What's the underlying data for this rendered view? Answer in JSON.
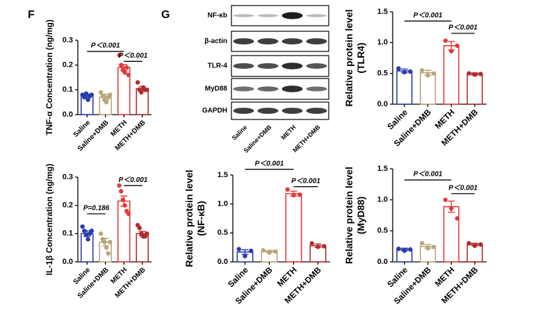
{
  "panels": [
    "F",
    "G"
  ],
  "blot": {
    "rows": [
      "NF-κb",
      "β-actin",
      "TLR-4",
      "MyD88",
      "GAPDH"
    ],
    "lanes": [
      "Saline",
      "Saline+DMB",
      "METH",
      "METH+DMB"
    ]
  },
  "chart_data": [
    {
      "type": "bar",
      "ylabel": [
        "TNF-α Concentration (ng/mg)"
      ],
      "categories": [
        "Saline",
        "Saline+DMB",
        "METH",
        "METH+DMB"
      ],
      "colors": [
        "#2a3aa8",
        "#b9a57a",
        "#e23a3a",
        "#b42a2a"
      ],
      "values": [
        0.075,
        0.07,
        0.19,
        0.105
      ],
      "errors": [
        0.008,
        0.012,
        0.012,
        0.008
      ],
      "points": [
        [
          0.08,
          0.07,
          0.085,
          0.06,
          0.075,
          0.08
        ],
        [
          0.09,
          0.075,
          0.06,
          0.05,
          0.07,
          0.08
        ],
        [
          0.24,
          0.2,
          0.18,
          0.17,
          0.19,
          0.16
        ],
        [
          0.13,
          0.1,
          0.09,
          0.11,
          0.1,
          0.1
        ]
      ],
      "ylim": [
        0,
        0.3
      ],
      "yticks": [
        {
          "value": 0,
          "label": "0.0"
        },
        0.1,
        0.2,
        0.3
      ],
      "annotations": [
        "P＜0.001",
        "P＜0.001"
      ]
    },
    {
      "type": "bar",
      "ylabel": [
        "IL-1β Concentration (ng/mg)"
      ],
      "categories": [
        "Saline",
        "Saline+DMB",
        "METH",
        "METH+DMB"
      ],
      "colors": [
        "#2a3aa8",
        "#b9a57a",
        "#e23a3a",
        "#b42a2a"
      ],
      "values": [
        0.1,
        0.07,
        0.215,
        0.1
      ],
      "errors": [
        0.01,
        0.013,
        0.018,
        0.008
      ],
      "points": [
        [
          0.125,
          0.11,
          0.095,
          0.08,
          0.1,
          0.11
        ],
        [
          0.1,
          0.08,
          0.07,
          0.05,
          0.03,
          0.07
        ],
        [
          0.27,
          0.25,
          0.22,
          0.2,
          0.18,
          0.17
        ],
        [
          0.13,
          0.12,
          0.1,
          0.09,
          0.09,
          0.1
        ]
      ],
      "ylim": [
        0,
        0.3
      ],
      "yticks": [
        {
          "value": 0,
          "label": "0.0"
        },
        0.1,
        0.2,
        0.3
      ],
      "annotations": [
        "P=0.186",
        "P＜0.001"
      ]
    },
    {
      "type": "bar",
      "ylabel": [
        "Relative protein level",
        "(TLR4)"
      ],
      "categories": [
        "Saline",
        "Saline+DMB",
        "METH",
        "METH+DMB"
      ],
      "colors": [
        "#2a3aa8",
        "#b9a57a",
        "#e23a3a",
        "#b42a2a"
      ],
      "values": [
        0.54,
        0.51,
        0.95,
        0.49
      ],
      "errors": [
        0.03,
        0.04,
        0.07,
        0.02
      ],
      "points": [
        [
          0.58,
          0.52,
          0.53
        ],
        [
          0.55,
          0.47,
          0.5
        ],
        [
          1.03,
          0.86,
          0.95
        ],
        [
          0.5,
          0.48,
          0.49
        ]
      ],
      "ylim": [
        0,
        1.5
      ],
      "yticks": [
        {
          "value": 0,
          "label": "0.0"
        },
        0.5,
        {
          "value": 1,
          "label": "1.0"
        },
        1.5
      ],
      "annotations": [
        "P＜0.001",
        "P＜0.001"
      ]
    },
    {
      "type": "bar",
      "ylabel": [
        "Relative protein level",
        "(NF-κB)"
      ],
      "categories": [
        "Saline",
        "Saline+DMB",
        "METH",
        "METH+DMB"
      ],
      "colors": [
        "#2a3aa8",
        "#b9a57a",
        "#e23a3a",
        "#b42a2a"
      ],
      "values": [
        0.17,
        0.18,
        1.18,
        0.28
      ],
      "errors": [
        0.04,
        0.02,
        0.04,
        0.03
      ],
      "points": [
        [
          0.22,
          0.1,
          0.19
        ],
        [
          0.2,
          0.16,
          0.18
        ],
        [
          1.25,
          1.15,
          1.16
        ],
        [
          0.32,
          0.26,
          0.27
        ]
      ],
      "ylim": [
        0,
        1.5
      ],
      "yticks": [
        {
          "value": 0,
          "label": "0.0"
        },
        0.5,
        {
          "value": 1,
          "label": "1.0"
        },
        1.5
      ],
      "annotations": [
        "P＜0.001",
        "P＜0.001"
      ]
    },
    {
      "type": "bar",
      "ylabel": [
        "Relative protein level",
        "(MyD88)"
      ],
      "categories": [
        "Saline",
        "Saline+DMB",
        "METH",
        "METH+DMB"
      ],
      "colors": [
        "#2a3aa8",
        "#b9a57a",
        "#e23a3a",
        "#b42a2a"
      ],
      "values": [
        0.2,
        0.25,
        0.89,
        0.28
      ],
      "errors": [
        0.02,
        0.03,
        0.09,
        0.02
      ],
      "points": [
        [
          0.21,
          0.18,
          0.2
        ],
        [
          0.3,
          0.22,
          0.24
        ],
        [
          1.0,
          0.86,
          0.7
        ],
        [
          0.3,
          0.26,
          0.28
        ]
      ],
      "ylim": [
        0,
        1.5
      ],
      "yticks": [
        {
          "value": 0,
          "label": "0.0"
        },
        0.5,
        {
          "value": 1,
          "label": "1.0"
        },
        1.5
      ],
      "annotations": [
        "P＜0.001",
        "P＜0.001"
      ]
    }
  ]
}
